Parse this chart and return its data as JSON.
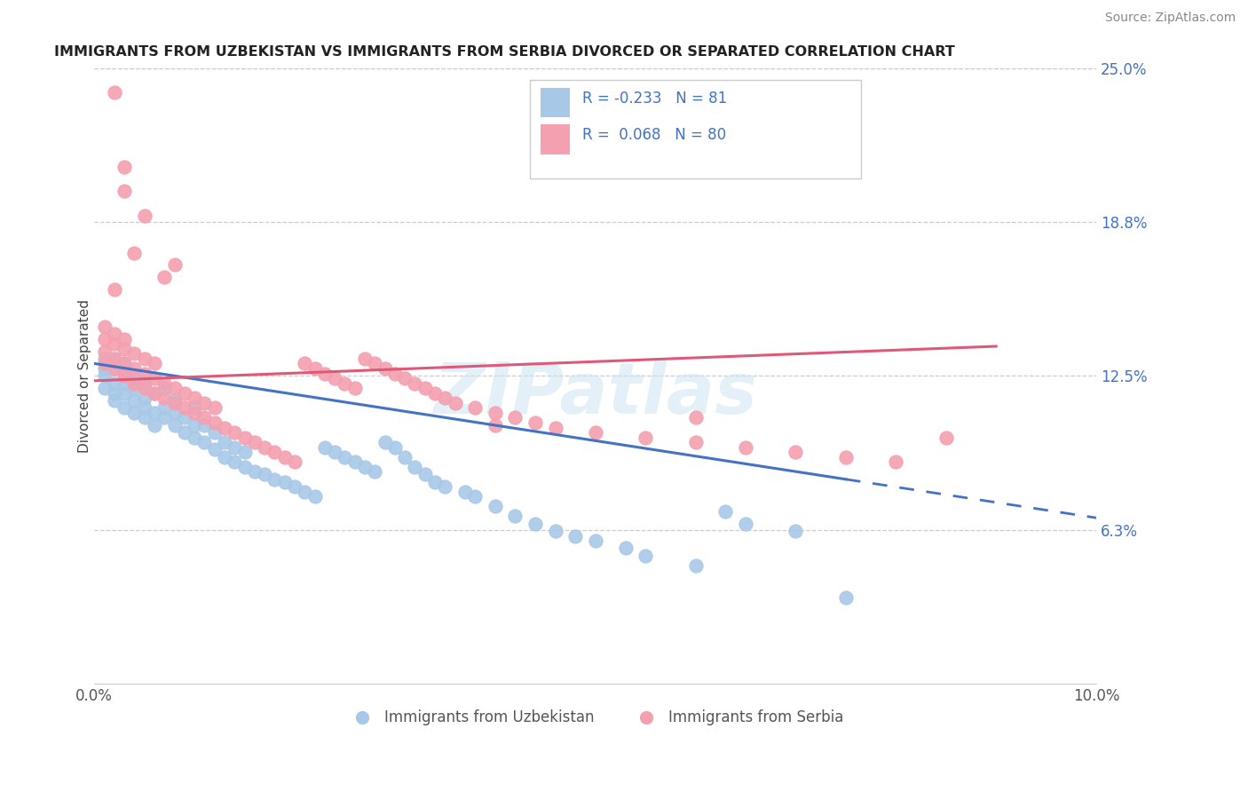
{
  "title": "IMMIGRANTS FROM UZBEKISTAN VS IMMIGRANTS FROM SERBIA DIVORCED OR SEPARATED CORRELATION CHART",
  "source": "Source: ZipAtlas.com",
  "ylabel": "Divorced or Separated",
  "legend_labels": [
    "Immigrants from Uzbekistan",
    "Immigrants from Serbia"
  ],
  "legend_R": [
    -0.233,
    0.068
  ],
  "legend_N": [
    81,
    80
  ],
  "xlim": [
    0.0,
    0.1
  ],
  "ylim": [
    0.0,
    0.25
  ],
  "yticks": [
    0.0625,
    0.125,
    0.1875,
    0.25
  ],
  "ytick_labels": [
    "6.3%",
    "12.5%",
    "18.8%",
    "25.0%"
  ],
  "xticks": [
    0.0,
    0.025,
    0.05,
    0.075,
    0.1
  ],
  "xtick_labels": [
    "0.0%",
    "",
    "",
    "",
    "10.0%"
  ],
  "color_blue": "#a8c8e8",
  "color_pink": "#f4a0b0",
  "trend_blue": "#4472c4",
  "trend_pink": "#e05878",
  "watermark": "ZIPatlas",
  "blue_scatter_x": [
    0.001,
    0.001,
    0.001,
    0.001,
    0.002,
    0.002,
    0.002,
    0.002,
    0.002,
    0.003,
    0.003,
    0.003,
    0.003,
    0.003,
    0.004,
    0.004,
    0.004,
    0.004,
    0.005,
    0.005,
    0.005,
    0.005,
    0.006,
    0.006,
    0.006,
    0.007,
    0.007,
    0.007,
    0.008,
    0.008,
    0.008,
    0.009,
    0.009,
    0.01,
    0.01,
    0.01,
    0.011,
    0.011,
    0.012,
    0.012,
    0.013,
    0.013,
    0.014,
    0.014,
    0.015,
    0.015,
    0.016,
    0.017,
    0.018,
    0.019,
    0.02,
    0.021,
    0.022,
    0.023,
    0.024,
    0.025,
    0.026,
    0.027,
    0.028,
    0.029,
    0.03,
    0.031,
    0.032,
    0.033,
    0.034,
    0.035,
    0.037,
    0.038,
    0.04,
    0.042,
    0.044,
    0.046,
    0.048,
    0.05,
    0.053,
    0.055,
    0.06,
    0.063,
    0.065,
    0.07,
    0.075
  ],
  "blue_scatter_y": [
    0.12,
    0.125,
    0.128,
    0.132,
    0.115,
    0.118,
    0.122,
    0.128,
    0.132,
    0.112,
    0.118,
    0.122,
    0.126,
    0.13,
    0.11,
    0.115,
    0.12,
    0.124,
    0.108,
    0.112,
    0.116,
    0.122,
    0.105,
    0.11,
    0.118,
    0.108,
    0.112,
    0.12,
    0.105,
    0.11,
    0.115,
    0.102,
    0.108,
    0.1,
    0.105,
    0.112,
    0.098,
    0.105,
    0.095,
    0.102,
    0.092,
    0.098,
    0.09,
    0.096,
    0.088,
    0.094,
    0.086,
    0.085,
    0.083,
    0.082,
    0.08,
    0.078,
    0.076,
    0.096,
    0.094,
    0.092,
    0.09,
    0.088,
    0.086,
    0.098,
    0.096,
    0.092,
    0.088,
    0.085,
    0.082,
    0.08,
    0.078,
    0.076,
    0.072,
    0.068,
    0.065,
    0.062,
    0.06,
    0.058,
    0.055,
    0.052,
    0.048,
    0.07,
    0.065,
    0.062,
    0.035
  ],
  "pink_scatter_x": [
    0.001,
    0.001,
    0.001,
    0.001,
    0.002,
    0.002,
    0.002,
    0.002,
    0.003,
    0.003,
    0.003,
    0.003,
    0.004,
    0.004,
    0.004,
    0.005,
    0.005,
    0.005,
    0.006,
    0.006,
    0.006,
    0.007,
    0.007,
    0.008,
    0.008,
    0.009,
    0.009,
    0.01,
    0.01,
    0.011,
    0.011,
    0.012,
    0.012,
    0.013,
    0.014,
    0.015,
    0.016,
    0.017,
    0.018,
    0.019,
    0.02,
    0.021,
    0.022,
    0.023,
    0.024,
    0.025,
    0.026,
    0.027,
    0.028,
    0.029,
    0.03,
    0.031,
    0.032,
    0.033,
    0.034,
    0.035,
    0.036,
    0.038,
    0.04,
    0.042,
    0.044,
    0.046,
    0.05,
    0.055,
    0.06,
    0.065,
    0.07,
    0.075,
    0.08,
    0.085,
    0.04,
    0.06,
    0.002,
    0.003,
    0.004,
    0.003,
    0.005,
    0.002,
    0.007,
    0.008
  ],
  "pink_scatter_y": [
    0.13,
    0.135,
    0.14,
    0.145,
    0.128,
    0.132,
    0.138,
    0.142,
    0.125,
    0.13,
    0.136,
    0.14,
    0.122,
    0.128,
    0.134,
    0.12,
    0.126,
    0.132,
    0.118,
    0.124,
    0.13,
    0.116,
    0.122,
    0.114,
    0.12,
    0.112,
    0.118,
    0.11,
    0.116,
    0.108,
    0.114,
    0.106,
    0.112,
    0.104,
    0.102,
    0.1,
    0.098,
    0.096,
    0.094,
    0.092,
    0.09,
    0.13,
    0.128,
    0.126,
    0.124,
    0.122,
    0.12,
    0.132,
    0.13,
    0.128,
    0.126,
    0.124,
    0.122,
    0.12,
    0.118,
    0.116,
    0.114,
    0.112,
    0.11,
    0.108,
    0.106,
    0.104,
    0.102,
    0.1,
    0.098,
    0.096,
    0.094,
    0.092,
    0.09,
    0.1,
    0.105,
    0.108,
    0.24,
    0.21,
    0.175,
    0.2,
    0.19,
    0.16,
    0.165,
    0.17
  ]
}
